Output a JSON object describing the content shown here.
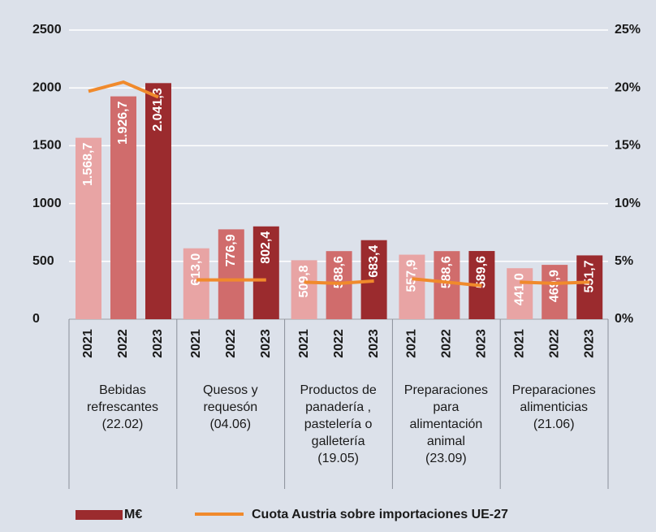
{
  "chart_data": {
    "type": "bar",
    "categories": [
      "Bebidas\nrefrescantes\n(22.02)",
      "Quesos y\nrequesón\n(04.06)",
      "Productos de\npanadería ,\npastelería o\ngalletería\n(19.05)",
      "Preparaciones\npara\nalimentación\nanimal\n(23.09)",
      "Preparaciones\nalimenticias\n(21.06)"
    ],
    "series": [
      {
        "name": "2021",
        "color": "#e8a4a4",
        "values": [
          1568.7,
          613.0,
          509.8,
          557.9,
          441.0
        ],
        "value_labels": [
          "1.568,7",
          "613,0",
          "509,8",
          "557,9",
          "441,0"
        ]
      },
      {
        "name": "2022",
        "color": "#d06c6c",
        "values": [
          1926.7,
          776.9,
          588.6,
          588.6,
          469.9
        ],
        "value_labels": [
          "1.926,7",
          "776,9",
          "588,6",
          "588,6",
          "469,9"
        ]
      },
      {
        "name": "2023",
        "color": "#9b2b2e",
        "values": [
          2041.3,
          802.4,
          683.4,
          589.6,
          551.7
        ],
        "value_labels": [
          "2.041,3",
          "802,4",
          "683,4",
          "589,6",
          "551,7"
        ]
      },
      {
        "name": "Cuota Austria sobre importaciones UE-27",
        "type": "line",
        "axis": "y2",
        "color": "#f08a2c",
        "values": [
          [
            19.7,
            20.5,
            19.2
          ],
          [
            3.4,
            3.4,
            3.4
          ],
          [
            3.2,
            3.1,
            3.3
          ],
          [
            3.5,
            3.2,
            2.9
          ],
          [
            3.2,
            3.1,
            3.2
          ]
        ]
      }
    ],
    "bar_legend_label": "M€",
    "bar_legend_color": "#9b2b2e",
    "ylim": [
      0,
      2500
    ],
    "yticks": [
      0,
      500,
      1000,
      1500,
      2000,
      2500
    ],
    "y2lim": [
      0,
      25
    ],
    "y2ticks": [
      {
        "value": 0,
        "label": "0%"
      },
      {
        "value": 5,
        "label": "5%"
      },
      {
        "value": 10,
        "label": "10%"
      },
      {
        "value": 15,
        "label": "15%"
      },
      {
        "value": 20,
        "label": "20%"
      },
      {
        "value": 25,
        "label": "25%"
      }
    ],
    "grid": true
  }
}
